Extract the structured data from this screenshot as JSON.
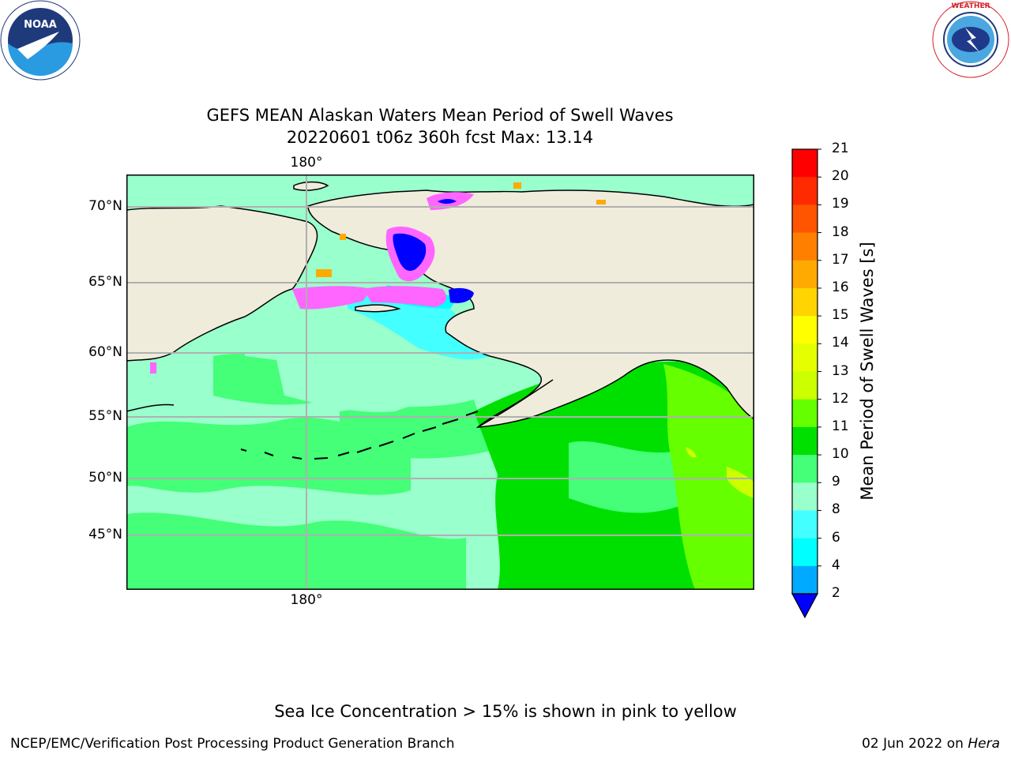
{
  "header": {
    "title_line1": "GEFS MEAN Alaskan Waters Mean Period of Swell Waves",
    "title_line2": "20220601 t06z 360h fcst   Max: 13.14"
  },
  "logos": {
    "left": {
      "name": "noaa-logo",
      "text": "NOAA",
      "ring_text": "NATIONAL OCEANIC AND ATMOSPHERIC ADMINISTRATION · U.S. DEPARTMENT OF COMMERCE"
    },
    "right": {
      "name": "nws-logo",
      "ring_text": "NATIONAL WEATHER SERVICE"
    }
  },
  "map": {
    "projection": "lat-lon",
    "lat_labels": [
      "70°N",
      "65°N",
      "60°N",
      "55°N",
      "50°N",
      "45°N"
    ],
    "lon_label_top": "180°",
    "lon_label_bottom": "180°",
    "land_color": "#efecdc",
    "grid_color": "#b0b0b0"
  },
  "colorbar": {
    "label": "Mean Period of Swell Waves [s]",
    "ticks": [
      "21",
      "20",
      "19",
      "18",
      "17",
      "16",
      "15",
      "14",
      "13",
      "12",
      "11",
      "10",
      "9",
      "8",
      "6",
      "4",
      "2"
    ],
    "colors": [
      "#ff0000",
      "#ff2a00",
      "#ff5500",
      "#ff7f00",
      "#ffaa00",
      "#ffd400",
      "#ffff00",
      "#e5ff00",
      "#ccff00",
      "#66ff00",
      "#00e000",
      "#44ff77",
      "#99ffcc",
      "#44ffff",
      "#00ffff",
      "#00aaff",
      "#0000ff"
    ],
    "extend": "min"
  },
  "footer": {
    "note": "Sea Ice Concentration > 15% is shown in pink to yellow",
    "left": "NCEP/EMC/Verification Post Processing Product Generation Branch",
    "right_date": "02 Jun 2022 on ",
    "right_machine": "Hera"
  }
}
